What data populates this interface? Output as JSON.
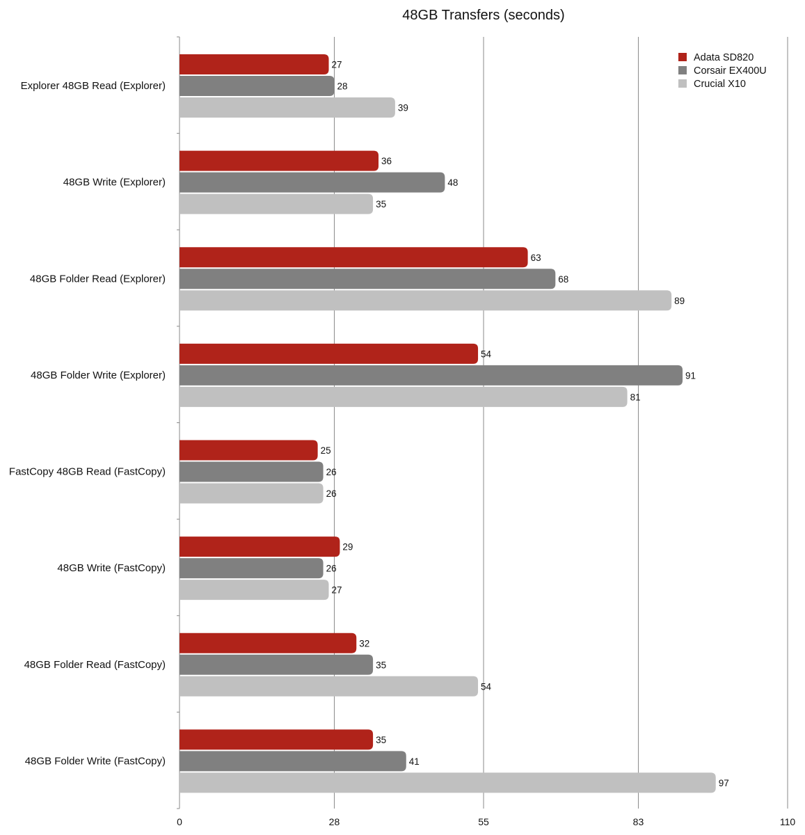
{
  "chart_data": {
    "type": "bar",
    "orientation": "horizontal",
    "title": "48GB Transfers (seconds)",
    "xlabel": "",
    "ylabel": "",
    "xlim": [
      0,
      110
    ],
    "xticks": [
      0,
      28,
      55,
      83,
      110
    ],
    "xtick_labels": [
      "0",
      "28",
      "55",
      "83",
      "110"
    ],
    "grid": true,
    "legend_position": "top-right",
    "categories": [
      "Explorer 48GB Read (Explorer)",
      "48GB Write (Explorer)",
      "48GB Folder Read (Explorer)",
      "48GB Folder Write (Explorer)",
      "FastCopy 48GB Read (FastCopy)",
      "48GB Write (FastCopy)",
      "48GB Folder Read (FastCopy)",
      "48GB Folder Write (FastCopy)"
    ],
    "series": [
      {
        "name": "Adata SD820",
        "color": "#b0231a",
        "values": [
          27,
          36,
          63,
          54,
          25,
          29,
          32,
          35
        ]
      },
      {
        "name": "Corsair EX400U",
        "color": "#808080",
        "values": [
          28,
          48,
          68,
          91,
          26,
          26,
          35,
          41
        ]
      },
      {
        "name": "Crucial X10",
        "color": "#c0c0c0",
        "values": [
          39,
          35,
          89,
          81,
          26,
          27,
          54,
          97
        ]
      }
    ]
  }
}
